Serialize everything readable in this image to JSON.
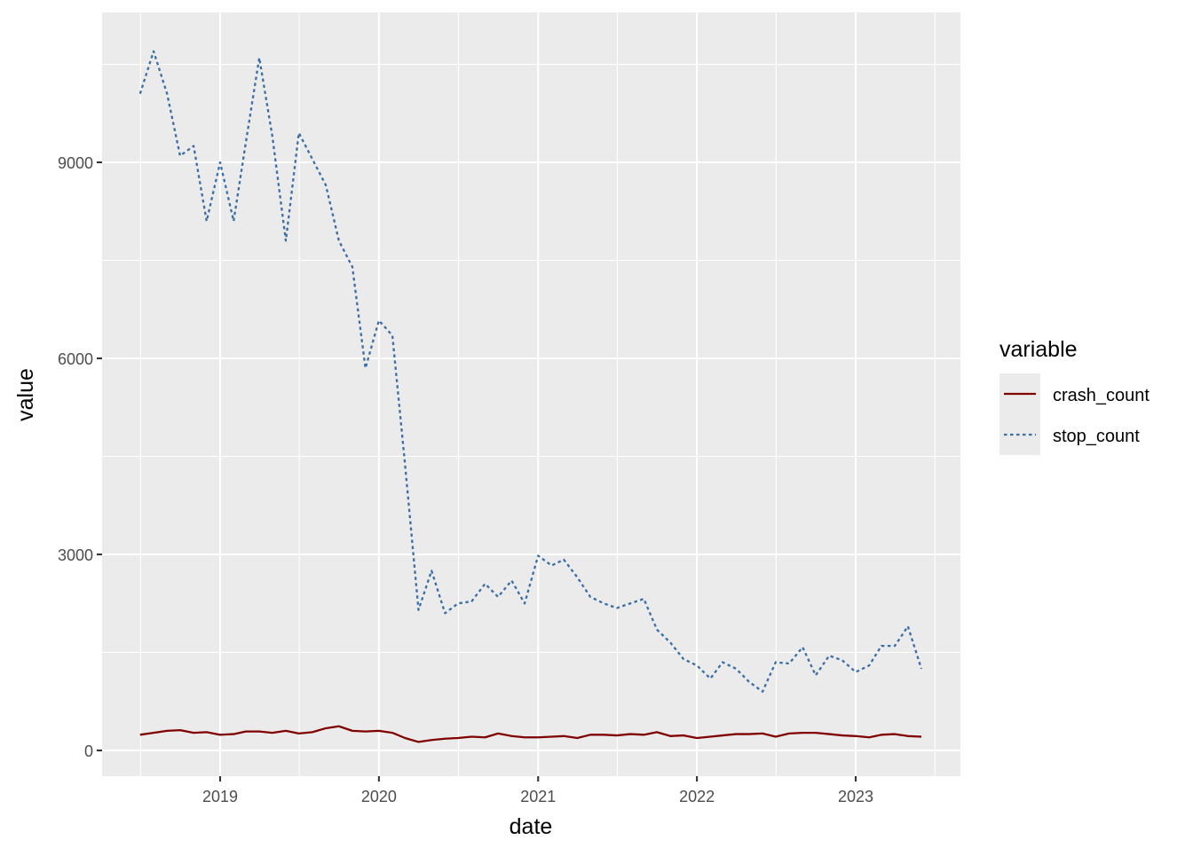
{
  "chart_data": {
    "type": "line",
    "title": "",
    "xlabel": "date",
    "ylabel": "value",
    "xlim": [
      "2018-05-01",
      "2023-08-01"
    ],
    "ylim": [
      -400,
      11150
    ],
    "x_ticks": [
      "2019",
      "2020",
      "2021",
      "2022",
      "2023"
    ],
    "y_ticks": [
      0,
      3000,
      6000,
      9000
    ],
    "grid": true,
    "legend": {
      "title": "variable",
      "position": "right"
    },
    "x": [
      "2018-07",
      "2018-08",
      "2018-09",
      "2018-10",
      "2018-11",
      "2018-12",
      "2019-01",
      "2019-02",
      "2019-03",
      "2019-04",
      "2019-05",
      "2019-06",
      "2019-07",
      "2019-08",
      "2019-09",
      "2019-10",
      "2019-11",
      "2019-12",
      "2020-01",
      "2020-02",
      "2020-03",
      "2020-04",
      "2020-05",
      "2020-06",
      "2020-07",
      "2020-08",
      "2020-09",
      "2020-10",
      "2020-11",
      "2020-12",
      "2021-01",
      "2021-02",
      "2021-03",
      "2021-04",
      "2021-05",
      "2021-06",
      "2021-07",
      "2021-08",
      "2021-09",
      "2021-10",
      "2021-11",
      "2021-12",
      "2022-01",
      "2022-02",
      "2022-03",
      "2022-04",
      "2022-05",
      "2022-06",
      "2022-07",
      "2022-08",
      "2022-09",
      "2022-10",
      "2022-11",
      "2022-12",
      "2023-01",
      "2023-02",
      "2023-03",
      "2023-04",
      "2023-05",
      "2023-06"
    ],
    "series": [
      {
        "name": "crash_count",
        "color": "#800000",
        "dash": "solid",
        "values": [
          240,
          270,
          300,
          310,
          270,
          280,
          240,
          250,
          290,
          290,
          270,
          300,
          260,
          280,
          340,
          370,
          300,
          290,
          300,
          270,
          190,
          130,
          160,
          180,
          190,
          210,
          200,
          260,
          220,
          200,
          200,
          210,
          220,
          190,
          240,
          240,
          230,
          250,
          240,
          280,
          220,
          230,
          190,
          210,
          230,
          250,
          250,
          260,
          210,
          260,
          270,
          270,
          250,
          230,
          220,
          200,
          240,
          250,
          220,
          210
        ]
      },
      {
        "name": "stop_count",
        "color": "#3a6ea5",
        "dash": "dotted",
        "values": [
          10050,
          10700,
          10050,
          9100,
          9250,
          8100,
          9000,
          8100,
          9300,
          10600,
          9400,
          7800,
          9450,
          9050,
          8650,
          7800,
          7400,
          5850,
          6580,
          6350,
          4380,
          2150,
          2750,
          2100,
          2250,
          2280,
          2550,
          2350,
          2600,
          2250,
          2980,
          2830,
          2920,
          2650,
          2350,
          2250,
          2180,
          2250,
          2320,
          1850,
          1650,
          1400,
          1300,
          1100,
          1350,
          1250,
          1050,
          900,
          1350,
          1330,
          1580,
          1150,
          1450,
          1380,
          1200,
          1300,
          1600,
          1600,
          1900,
          1250
        ]
      }
    ]
  }
}
